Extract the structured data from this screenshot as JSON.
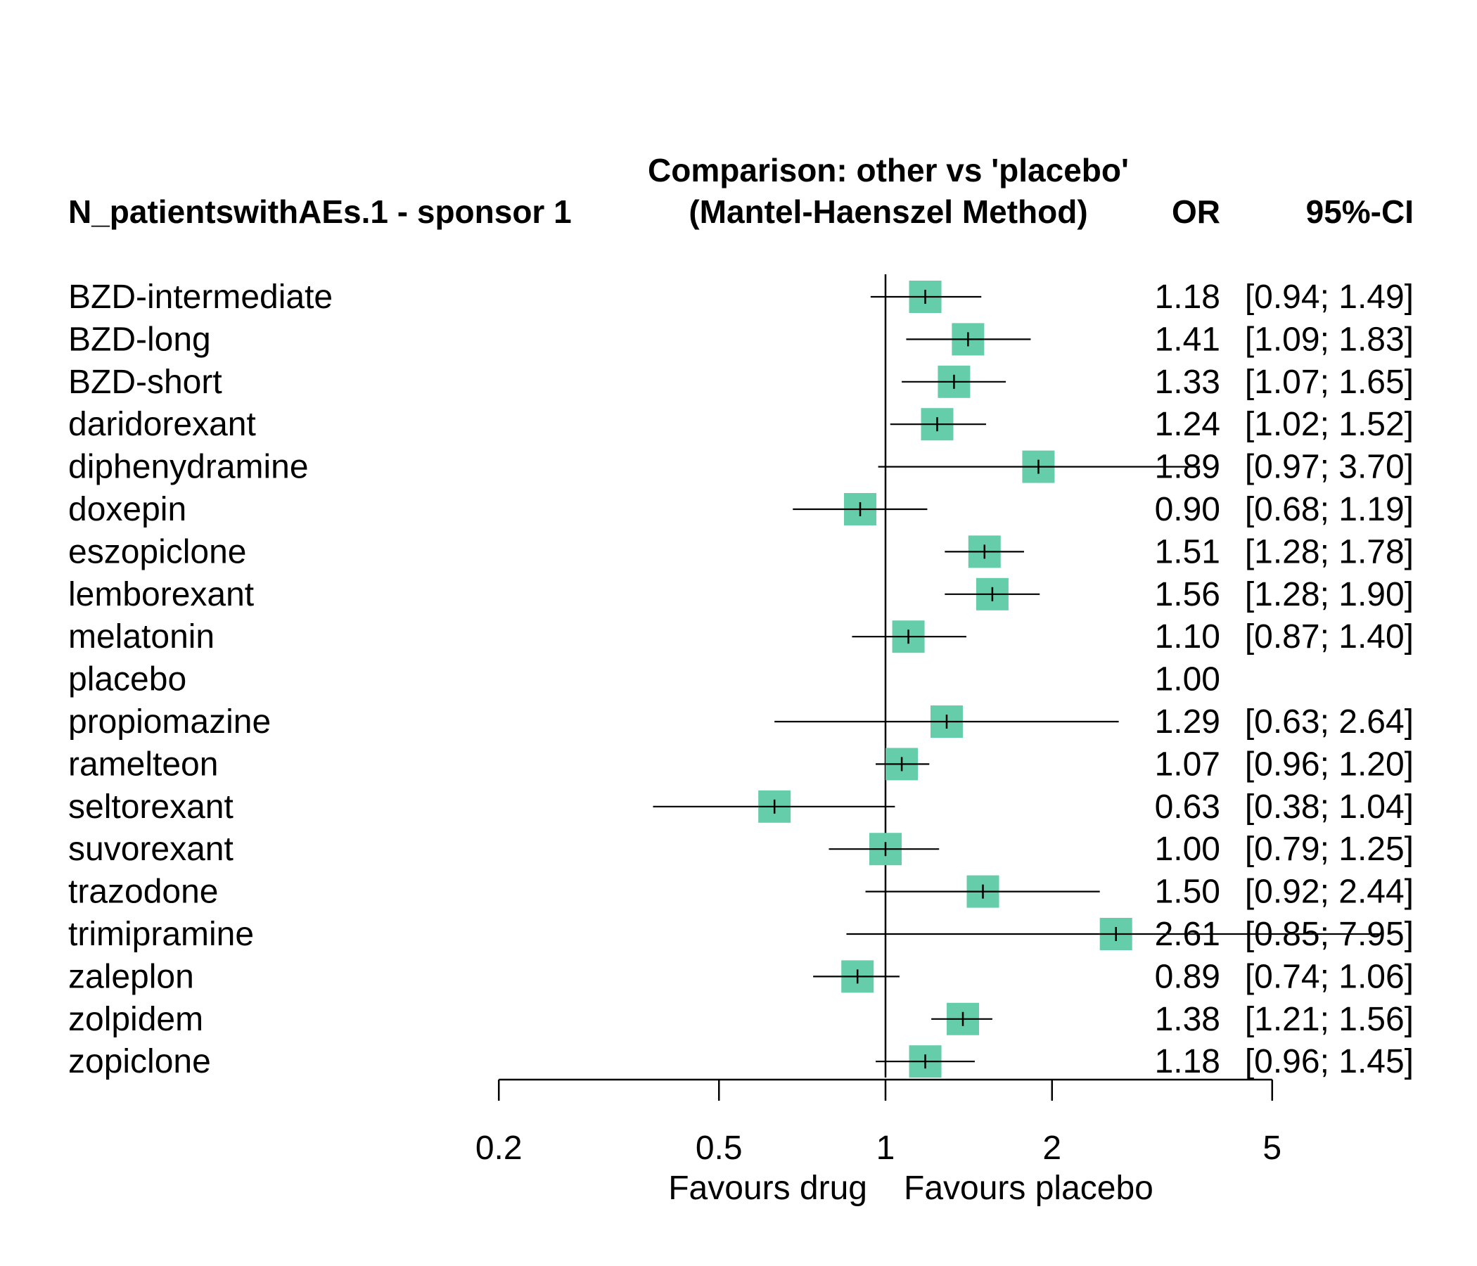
{
  "chart_data": {
    "type": "forest",
    "title_line1": "Comparison: other vs 'placebo'",
    "title_line2": "(Mantel-Haenszel Method)",
    "left_header": "N_patientswithAEs.1 - sponsor 1",
    "col_or_header": "OR",
    "col_ci_header": "95%-CI",
    "x_scale": "log",
    "x_ticks": [
      0.2,
      0.5,
      1,
      2,
      5
    ],
    "x_tick_labels": [
      "0.2",
      "0.5",
      "1",
      "2",
      "5"
    ],
    "xlabel_left": "Favours drug",
    "xlabel_right": "Favours placebo",
    "reference_line": 1,
    "box_color": "#66CDAA",
    "rows": [
      {
        "label": "BZD-intermediate",
        "or": 1.18,
        "lo": 0.94,
        "hi": 1.49,
        "or_text": "1.18",
        "ci_text": "[0.94; 1.49]"
      },
      {
        "label": "BZD-long",
        "or": 1.41,
        "lo": 1.09,
        "hi": 1.83,
        "or_text": "1.41",
        "ci_text": "[1.09; 1.83]"
      },
      {
        "label": "BZD-short",
        "or": 1.33,
        "lo": 1.07,
        "hi": 1.65,
        "or_text": "1.33",
        "ci_text": "[1.07; 1.65]"
      },
      {
        "label": "daridorexant",
        "or": 1.24,
        "lo": 1.02,
        "hi": 1.52,
        "or_text": "1.24",
        "ci_text": "[1.02; 1.52]"
      },
      {
        "label": "diphenydramine",
        "or": 1.89,
        "lo": 0.97,
        "hi": 3.7,
        "or_text": "1.89",
        "ci_text": "[0.97; 3.70]"
      },
      {
        "label": "doxepin",
        "or": 0.9,
        "lo": 0.68,
        "hi": 1.19,
        "or_text": "0.90",
        "ci_text": "[0.68; 1.19]"
      },
      {
        "label": "eszopiclone",
        "or": 1.51,
        "lo": 1.28,
        "hi": 1.78,
        "or_text": "1.51",
        "ci_text": "[1.28; 1.78]"
      },
      {
        "label": "lemborexant",
        "or": 1.56,
        "lo": 1.28,
        "hi": 1.9,
        "or_text": "1.56",
        "ci_text": "[1.28; 1.90]"
      },
      {
        "label": "melatonin",
        "or": 1.1,
        "lo": 0.87,
        "hi": 1.4,
        "or_text": "1.10",
        "ci_text": "[0.87; 1.40]"
      },
      {
        "label": "placebo",
        "or": 1.0,
        "lo": null,
        "hi": null,
        "or_text": "1.00",
        "ci_text": ""
      },
      {
        "label": "propiomazine",
        "or": 1.29,
        "lo": 0.63,
        "hi": 2.64,
        "or_text": "1.29",
        "ci_text": "[0.63; 2.64]"
      },
      {
        "label": "ramelteon",
        "or": 1.07,
        "lo": 0.96,
        "hi": 1.2,
        "or_text": "1.07",
        "ci_text": "[0.96; 1.20]"
      },
      {
        "label": "seltorexant",
        "or": 0.63,
        "lo": 0.38,
        "hi": 1.04,
        "or_text": "0.63",
        "ci_text": "[0.38; 1.04]"
      },
      {
        "label": "suvorexant",
        "or": 1.0,
        "lo": 0.79,
        "hi": 1.25,
        "or_text": "1.00",
        "ci_text": "[0.79; 1.25]"
      },
      {
        "label": "trazodone",
        "or": 1.5,
        "lo": 0.92,
        "hi": 2.44,
        "or_text": "1.50",
        "ci_text": "[0.92; 2.44]"
      },
      {
        "label": "trimipramine",
        "or": 2.61,
        "lo": 0.85,
        "hi": 7.95,
        "or_text": "2.61",
        "ci_text": "[0.85; 7.95]"
      },
      {
        "label": "zaleplon",
        "or": 0.89,
        "lo": 0.74,
        "hi": 1.06,
        "or_text": "0.89",
        "ci_text": "[0.74; 1.06]"
      },
      {
        "label": "zolpidem",
        "or": 1.38,
        "lo": 1.21,
        "hi": 1.56,
        "or_text": "1.38",
        "ci_text": "[1.21; 1.56]"
      },
      {
        "label": "zopiclone",
        "or": 1.18,
        "lo": 0.96,
        "hi": 1.45,
        "or_text": "1.18",
        "ci_text": "[0.96; 1.45]"
      }
    ]
  }
}
